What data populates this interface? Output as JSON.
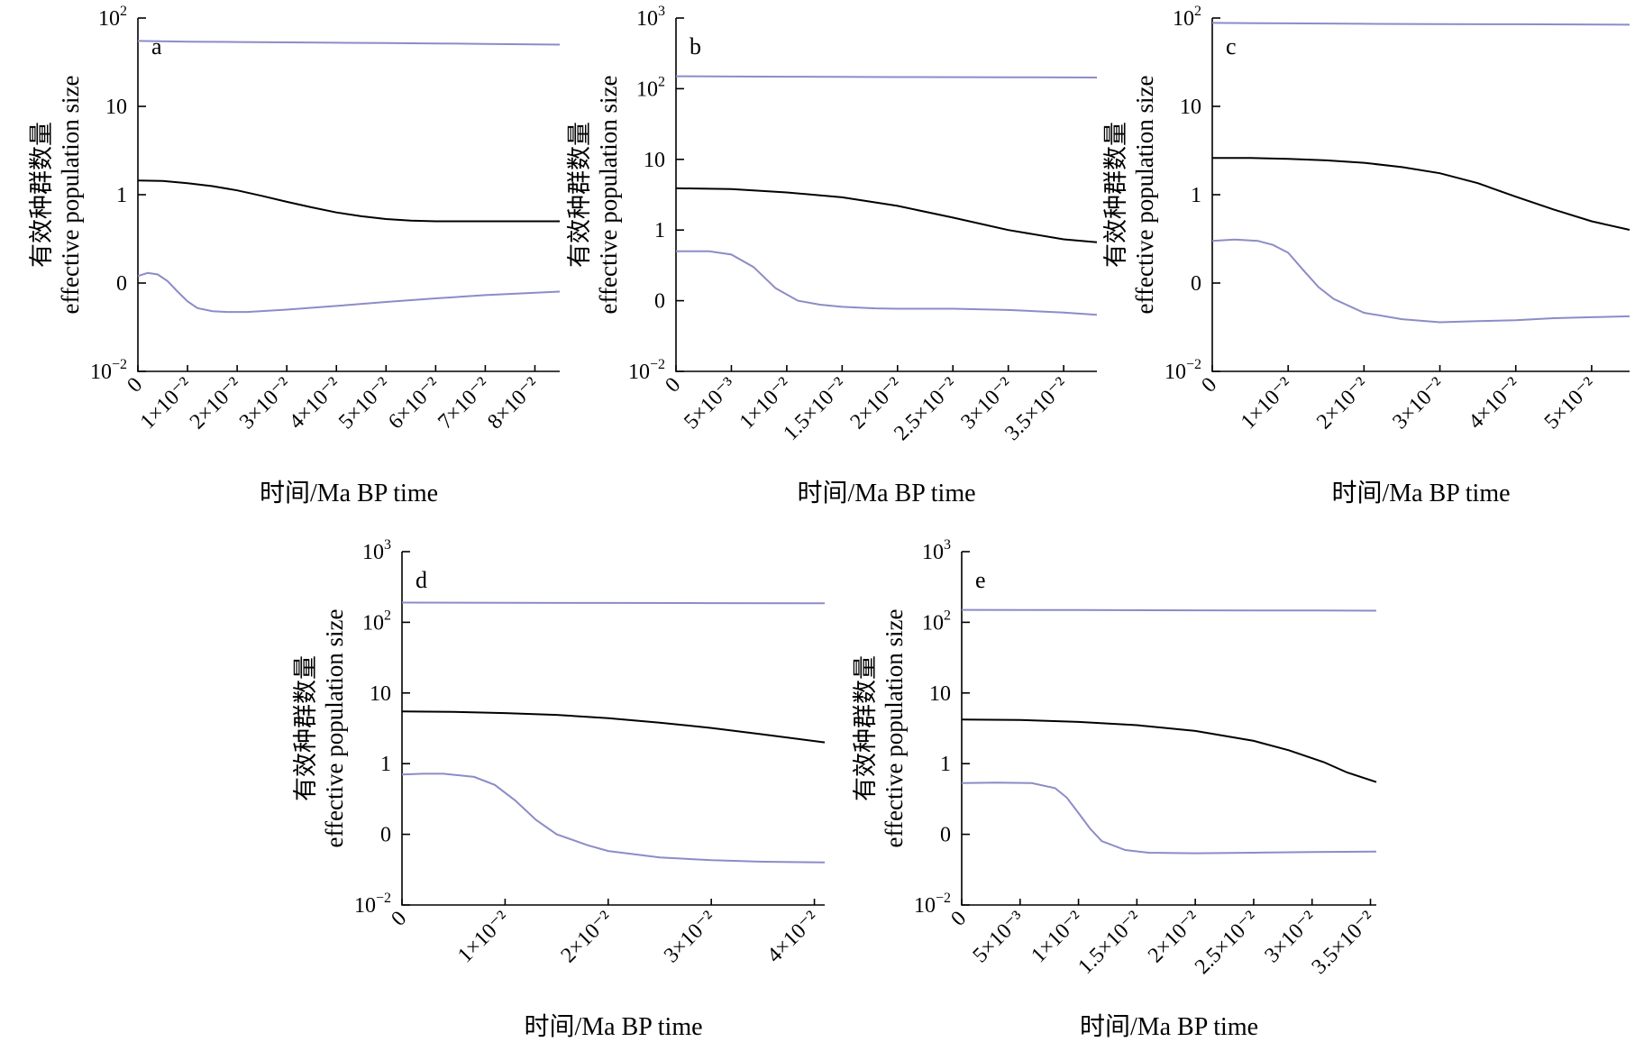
{
  "chart_data": [
    {
      "type": "line",
      "panel_label": "a",
      "ylabel_cn": "有效种群数量",
      "ylabel_en": "effective population size",
      "xlabel": "时间/Ma BP time",
      "y_scale": "log",
      "y_ticks": [
        {
          "value": 0.01,
          "base": "10",
          "sup": "−2"
        },
        {
          "value": 0.1,
          "base": "0",
          "sup": ""
        },
        {
          "value": 1,
          "base": "1",
          "sup": ""
        },
        {
          "value": 10,
          "base": "10",
          "sup": ""
        },
        {
          "value": 100,
          "base": "10",
          "sup": "2"
        }
      ],
      "ylim": [
        0.01,
        100
      ],
      "x_ticks": [
        {
          "value": 0,
          "label": "0"
        },
        {
          "value": 0.01,
          "label": "1×10⁻²"
        },
        {
          "value": 0.02,
          "label": "2×10⁻²"
        },
        {
          "value": 0.03,
          "label": "3×10⁻²"
        },
        {
          "value": 0.04,
          "label": "4×10⁻²"
        },
        {
          "value": 0.05,
          "label": "5×10⁻²"
        },
        {
          "value": 0.06,
          "label": "6×10⁻²"
        },
        {
          "value": 0.07,
          "label": "7×10⁻²"
        },
        {
          "value": 0.08,
          "label": "8×10⁻²"
        }
      ],
      "xlim": [
        0,
        0.085
      ],
      "grid": false,
      "series": [
        {
          "role": "upper",
          "color": "#8c8cc8",
          "x": [
            0,
            0.01,
            0.02,
            0.03,
            0.04,
            0.05,
            0.06,
            0.07,
            0.085
          ],
          "y": [
            55,
            54,
            53.5,
            53,
            52.5,
            52,
            51.5,
            51,
            50
          ]
        },
        {
          "role": "median",
          "color": "#000000",
          "x": [
            0,
            0.005,
            0.01,
            0.015,
            0.02,
            0.025,
            0.03,
            0.035,
            0.04,
            0.045,
            0.05,
            0.055,
            0.06,
            0.065,
            0.07,
            0.085
          ],
          "y": [
            1.45,
            1.43,
            1.35,
            1.25,
            1.12,
            0.97,
            0.83,
            0.72,
            0.63,
            0.57,
            0.53,
            0.51,
            0.5,
            0.5,
            0.5,
            0.5
          ]
        },
        {
          "role": "lower",
          "color": "#8c8cc8",
          "x": [
            0,
            0.002,
            0.004,
            0.006,
            0.008,
            0.01,
            0.012,
            0.015,
            0.018,
            0.022,
            0.03,
            0.04,
            0.05,
            0.06,
            0.07,
            0.085
          ],
          "y": [
            0.12,
            0.13,
            0.125,
            0.105,
            0.08,
            0.062,
            0.052,
            0.048,
            0.047,
            0.047,
            0.05,
            0.055,
            0.061,
            0.067,
            0.073,
            0.08
          ]
        }
      ]
    },
    {
      "type": "line",
      "panel_label": "b",
      "ylabel_cn": "有效种群数量",
      "ylabel_en": "effective population size",
      "xlabel": "时间/Ma BP time",
      "y_scale": "log",
      "y_ticks": [
        {
          "value": 0.01,
          "base": "10",
          "sup": "−2"
        },
        {
          "value": 0.1,
          "base": "0",
          "sup": ""
        },
        {
          "value": 1,
          "base": "1",
          "sup": ""
        },
        {
          "value": 10,
          "base": "10",
          "sup": ""
        },
        {
          "value": 100,
          "base": "10",
          "sup": "2"
        },
        {
          "value": 1000,
          "base": "10",
          "sup": "3"
        }
      ],
      "ylim": [
        0.01,
        1000
      ],
      "x_ticks": [
        {
          "value": 0,
          "label": "0"
        },
        {
          "value": 0.005,
          "label": "5×10⁻³"
        },
        {
          "value": 0.01,
          "label": "1×10⁻²"
        },
        {
          "value": 0.015,
          "label": "1.5×10⁻²"
        },
        {
          "value": 0.02,
          "label": "2×10⁻²"
        },
        {
          "value": 0.025,
          "label": "2.5×10⁻²"
        },
        {
          "value": 0.03,
          "label": "3×10⁻²"
        },
        {
          "value": 0.035,
          "label": "3.5×10⁻²"
        }
      ],
      "xlim": [
        0,
        0.038
      ],
      "grid": false,
      "series": [
        {
          "role": "upper",
          "color": "#8c8cc8",
          "x": [
            0,
            0.01,
            0.02,
            0.03,
            0.038
          ],
          "y": [
            150,
            148,
            146,
            145,
            144
          ]
        },
        {
          "role": "median",
          "color": "#000000",
          "x": [
            0,
            0.005,
            0.01,
            0.015,
            0.02,
            0.025,
            0.03,
            0.035,
            0.038
          ],
          "y": [
            3.9,
            3.8,
            3.4,
            2.9,
            2.2,
            1.5,
            1.0,
            0.74,
            0.67
          ]
        },
        {
          "role": "lower",
          "color": "#8c8cc8",
          "x": [
            0,
            0.003,
            0.005,
            0.007,
            0.009,
            0.011,
            0.013,
            0.015,
            0.018,
            0.02,
            0.025,
            0.03,
            0.035,
            0.038
          ],
          "y": [
            0.5,
            0.5,
            0.45,
            0.3,
            0.15,
            0.1,
            0.088,
            0.082,
            0.078,
            0.077,
            0.077,
            0.074,
            0.068,
            0.063
          ]
        }
      ]
    },
    {
      "type": "line",
      "panel_label": "c",
      "ylabel_cn": "有效种群数量",
      "ylabel_en": "effective population size",
      "xlabel": "时间/Ma BP time",
      "y_scale": "log",
      "y_ticks": [
        {
          "value": 0.01,
          "base": "10",
          "sup": "−2"
        },
        {
          "value": 0.1,
          "base": "0",
          "sup": ""
        },
        {
          "value": 1,
          "base": "1",
          "sup": ""
        },
        {
          "value": 10,
          "base": "10",
          "sup": ""
        },
        {
          "value": 100,
          "base": "10",
          "sup": "2"
        }
      ],
      "ylim": [
        0.01,
        100
      ],
      "x_ticks": [
        {
          "value": 0,
          "label": "0"
        },
        {
          "value": 0.01,
          "label": "1×10⁻²"
        },
        {
          "value": 0.02,
          "label": "2×10⁻²"
        },
        {
          "value": 0.03,
          "label": "3×10⁻²"
        },
        {
          "value": 0.04,
          "label": "4×10⁻²"
        },
        {
          "value": 0.05,
          "label": "5×10⁻²"
        }
      ],
      "xlim": [
        0,
        0.055
      ],
      "grid": false,
      "series": [
        {
          "role": "upper",
          "color": "#8c8cc8",
          "x": [
            0,
            0.01,
            0.02,
            0.03,
            0.04,
            0.055
          ],
          "y": [
            88,
            87,
            86,
            85.5,
            85,
            84
          ]
        },
        {
          "role": "median",
          "color": "#000000",
          "x": [
            0,
            0.005,
            0.01,
            0.015,
            0.02,
            0.025,
            0.03,
            0.035,
            0.04,
            0.045,
            0.05,
            0.055
          ],
          "y": [
            2.6,
            2.6,
            2.55,
            2.45,
            2.3,
            2.05,
            1.75,
            1.35,
            0.95,
            0.68,
            0.5,
            0.4
          ]
        },
        {
          "role": "lower",
          "color": "#8c8cc8",
          "x": [
            0,
            0.003,
            0.006,
            0.008,
            0.01,
            0.012,
            0.014,
            0.016,
            0.02,
            0.025,
            0.03,
            0.035,
            0.04,
            0.045,
            0.05,
            0.055
          ],
          "y": [
            0.3,
            0.31,
            0.3,
            0.27,
            0.22,
            0.14,
            0.09,
            0.066,
            0.046,
            0.039,
            0.036,
            0.037,
            0.038,
            0.04,
            0.041,
            0.042
          ]
        }
      ]
    },
    {
      "type": "line",
      "panel_label": "d",
      "ylabel_cn": "有效种群数量",
      "ylabel_en": "effective population size",
      "xlabel": "时间/Ma BP time",
      "y_scale": "log",
      "y_ticks": [
        {
          "value": 0.01,
          "base": "10",
          "sup": "−2"
        },
        {
          "value": 0.1,
          "base": "0",
          "sup": ""
        },
        {
          "value": 1,
          "base": "1",
          "sup": ""
        },
        {
          "value": 10,
          "base": "10",
          "sup": ""
        },
        {
          "value": 100,
          "base": "10",
          "sup": "2"
        },
        {
          "value": 1000,
          "base": "10",
          "sup": "3"
        }
      ],
      "ylim": [
        0.01,
        1000
      ],
      "x_ticks": [
        {
          "value": 0,
          "label": "0"
        },
        {
          "value": 0.01,
          "label": "1×10⁻²"
        },
        {
          "value": 0.02,
          "label": "2×10⁻²"
        },
        {
          "value": 0.03,
          "label": "3×10⁻²"
        },
        {
          "value": 0.04,
          "label": "4×10⁻²"
        }
      ],
      "xlim": [
        0,
        0.041
      ],
      "grid": false,
      "series": [
        {
          "role": "upper",
          "color": "#8c8cc8",
          "x": [
            0,
            0.01,
            0.02,
            0.03,
            0.041
          ],
          "y": [
            190,
            189,
            188,
            187,
            186
          ]
        },
        {
          "role": "median",
          "color": "#000000",
          "x": [
            0,
            0.005,
            0.01,
            0.015,
            0.02,
            0.025,
            0.03,
            0.035,
            0.041
          ],
          "y": [
            5.5,
            5.4,
            5.2,
            4.9,
            4.4,
            3.8,
            3.2,
            2.6,
            2.0
          ]
        },
        {
          "role": "lower",
          "color": "#8c8cc8",
          "x": [
            0,
            0.002,
            0.004,
            0.007,
            0.009,
            0.011,
            0.013,
            0.015,
            0.018,
            0.02,
            0.025,
            0.03,
            0.035,
            0.041
          ],
          "y": [
            0.7,
            0.72,
            0.72,
            0.65,
            0.5,
            0.3,
            0.16,
            0.1,
            0.07,
            0.058,
            0.047,
            0.043,
            0.041,
            0.04
          ]
        }
      ]
    },
    {
      "type": "line",
      "panel_label": "e",
      "ylabel_cn": "有效种群数量",
      "ylabel_en": "effective population size",
      "xlabel": "时间/Ma BP time",
      "y_scale": "log",
      "y_ticks": [
        {
          "value": 0.01,
          "base": "10",
          "sup": "−2"
        },
        {
          "value": 0.1,
          "base": "0",
          "sup": ""
        },
        {
          "value": 1,
          "base": "1",
          "sup": ""
        },
        {
          "value": 10,
          "base": "10",
          "sup": ""
        },
        {
          "value": 100,
          "base": "10",
          "sup": "2"
        },
        {
          "value": 1000,
          "base": "10",
          "sup": "3"
        }
      ],
      "ylim": [
        0.01,
        1000
      ],
      "x_ticks": [
        {
          "value": 0,
          "label": "0"
        },
        {
          "value": 0.005,
          "label": "5×10⁻³"
        },
        {
          "value": 0.01,
          "label": "1×10⁻²"
        },
        {
          "value": 0.015,
          "label": "1.5×10⁻²"
        },
        {
          "value": 0.02,
          "label": "2×10⁻²"
        },
        {
          "value": 0.025,
          "label": "2.5×10⁻²"
        },
        {
          "value": 0.03,
          "label": "3×10⁻²"
        },
        {
          "value": 0.035,
          "label": "3.5×10⁻²"
        }
      ],
      "xlim": [
        0,
        0.0355
      ],
      "grid": false,
      "series": [
        {
          "role": "upper",
          "color": "#8c8cc8",
          "x": [
            0,
            0.01,
            0.02,
            0.03,
            0.0355
          ],
          "y": [
            150,
            149,
            148,
            147,
            146
          ]
        },
        {
          "role": "median",
          "color": "#000000",
          "x": [
            0,
            0.005,
            0.01,
            0.015,
            0.02,
            0.025,
            0.028,
            0.031,
            0.033,
            0.0355
          ],
          "y": [
            4.2,
            4.15,
            3.9,
            3.5,
            2.9,
            2.1,
            1.55,
            1.05,
            0.75,
            0.55
          ]
        },
        {
          "role": "lower",
          "color": "#8c8cc8",
          "x": [
            0,
            0.003,
            0.006,
            0.008,
            0.009,
            0.01,
            0.011,
            0.012,
            0.014,
            0.016,
            0.02,
            0.025,
            0.03,
            0.0355
          ],
          "y": [
            0.53,
            0.54,
            0.53,
            0.45,
            0.33,
            0.2,
            0.12,
            0.08,
            0.06,
            0.055,
            0.054,
            0.055,
            0.056,
            0.057
          ]
        }
      ]
    }
  ]
}
